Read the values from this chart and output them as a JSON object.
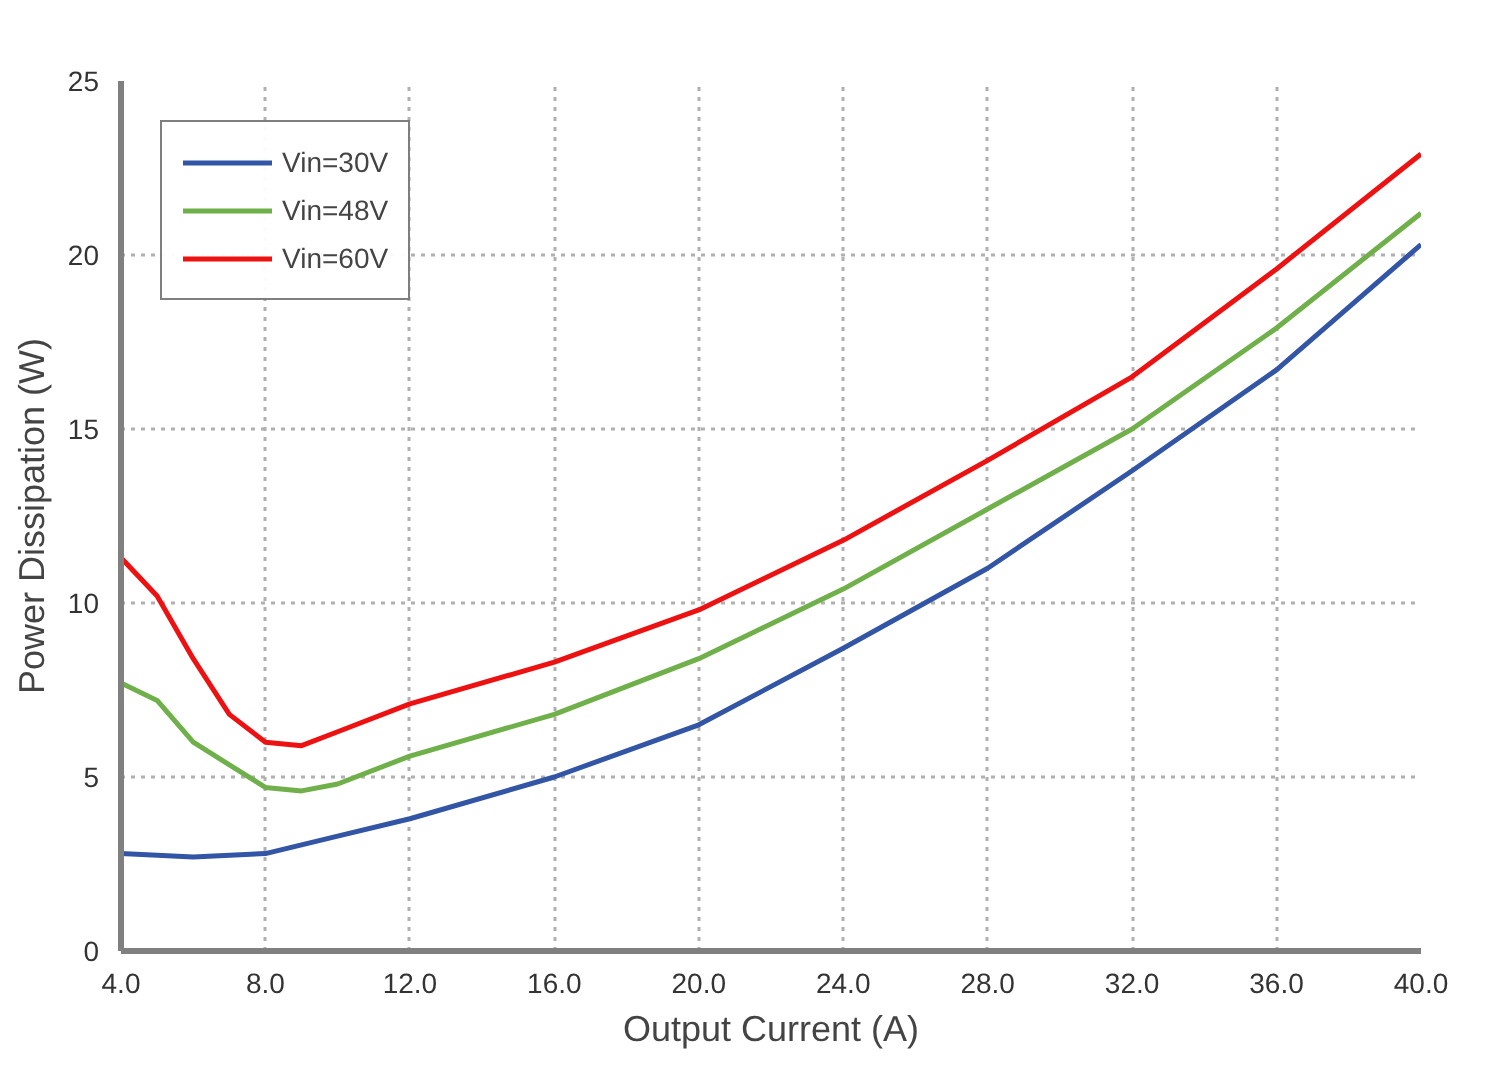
{
  "chart_data": {
    "type": "line",
    "xlabel": "Output Current (A)",
    "ylabel": "Power Dissipation (W)",
    "xlim": [
      4,
      40
    ],
    "ylim": [
      0,
      25
    ],
    "xticks": [
      {
        "value": 4,
        "label": "4.0"
      },
      {
        "value": 8,
        "label": "8.0"
      },
      {
        "value": 12,
        "label": "12.0"
      },
      {
        "value": 16,
        "label": "16.0"
      },
      {
        "value": 20,
        "label": "20.0"
      },
      {
        "value": 24,
        "label": "24.0"
      },
      {
        "value": 28,
        "label": "28.0"
      },
      {
        "value": 32,
        "label": "32.0"
      },
      {
        "value": 36,
        "label": "36.0"
      },
      {
        "value": 40,
        "label": "40.0"
      }
    ],
    "yticks": [
      0,
      5,
      10,
      15,
      20,
      25
    ],
    "grid": true,
    "legend": "top left",
    "line_style": "solid",
    "series": [
      {
        "name": "Vin=30V",
        "color": "#3355a5",
        "x": [
          4,
          6,
          8,
          10,
          12,
          16,
          20,
          24,
          28,
          32,
          36,
          40
        ],
        "values": [
          2.8,
          2.7,
          2.8,
          3.3,
          3.8,
          5.0,
          6.5,
          8.7,
          11.0,
          13.8,
          16.7,
          20.3
        ]
      },
      {
        "name": "Vin=48V",
        "color": "#70b04a",
        "x": [
          4,
          5,
          6,
          8,
          9,
          10,
          12,
          16,
          20,
          24,
          28,
          32,
          36,
          40
        ],
        "values": [
          7.7,
          7.2,
          6.0,
          4.7,
          4.6,
          4.8,
          5.6,
          6.8,
          8.4,
          10.4,
          12.7,
          15.0,
          17.9,
          21.2
        ]
      },
      {
        "name": "Vin=60V",
        "color": "#ee1111",
        "x": [
          4,
          5,
          6,
          7,
          8,
          9,
          10,
          12,
          16,
          20,
          24,
          28,
          32,
          36,
          40
        ],
        "values": [
          11.3,
          10.2,
          8.4,
          6.8,
          6.0,
          5.9,
          6.3,
          7.1,
          8.3,
          9.8,
          11.8,
          14.1,
          16.5,
          19.6,
          22.9
        ]
      }
    ]
  }
}
